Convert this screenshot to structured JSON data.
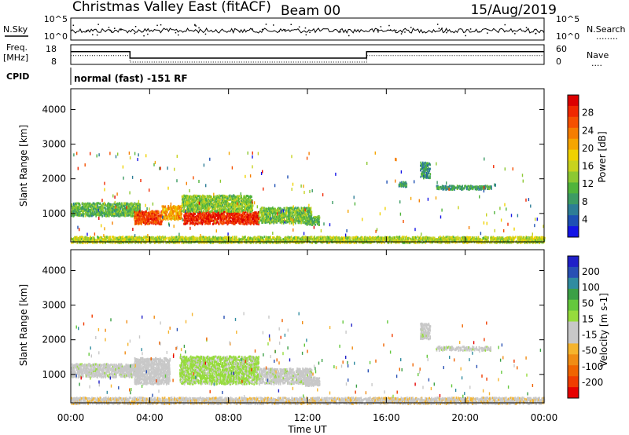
{
  "header": {
    "title": "Christmas Valley East (fitACF)",
    "beam": "Beam 00",
    "date": "15/Aug/2019"
  },
  "nsky_panel": {
    "left_label": "N.Sky",
    "left_ticks": [
      "10^5",
      "10^0"
    ],
    "right_ticks": [
      "10^5",
      "10^0"
    ],
    "right_label": "N.Search",
    "right_legend": "........"
  },
  "freq_panel": {
    "left_label_1": "Freq.",
    "left_label_2": "[MHz]",
    "left_ticks": [
      "18",
      "8"
    ],
    "right_ticks": [
      "60",
      "0"
    ],
    "right_label": "Nave",
    "right_legend": "....",
    "freq_steps": [
      {
        "start_hour": 0,
        "end_hour": 3.0,
        "value": 14.5
      },
      {
        "start_hour": 3.0,
        "end_hour": 15.0,
        "value": 11.2
      },
      {
        "start_hour": 15.0,
        "end_hour": 24.0,
        "value": 14.5
      }
    ]
  },
  "cpid_panel": {
    "label": "CPID",
    "text": "normal (fast) -151 RF"
  },
  "colors": {
    "power_scale": [
      "#1414e6",
      "#1e50b4",
      "#2d7d96",
      "#3c9b64",
      "#50b43c",
      "#8cc832",
      "#c8d21e",
      "#f0d200",
      "#f5a500",
      "#f57d00",
      "#f55000",
      "#f02800",
      "#dc0000"
    ],
    "velocity_scale": [
      "#2020c8",
      "#2850b4",
      "#308ca0",
      "#3ca046",
      "#64c83c",
      "#96dc3c",
      "#c8c8c8",
      "#c8c8c8",
      "#f5b42d",
      "#f08c14",
      "#f06400",
      "#f03c00",
      "#e60000"
    ]
  },
  "chart_data": [
    {
      "type": "heatmap",
      "name": "power",
      "x_unit": "hours UT",
      "xlim": [
        0,
        24
      ],
      "ylim": [
        180,
        4600
      ],
      "ylabel": "Slant Range [km]",
      "yticks": [
        "1000",
        "2000",
        "3000",
        "4000"
      ],
      "colorbar_label": "Power [dB]",
      "colorbar_ticks": [
        "4",
        "8",
        "12",
        "16",
        "20",
        "24",
        "28"
      ],
      "blobs": [
        {
          "x0": 0.0,
          "x1": 3.5,
          "y0": 950,
          "y1": 1330,
          "value": 10
        },
        {
          "x0": 3.2,
          "x1": 4.6,
          "y0": 720,
          "y1": 1100,
          "value": 26
        },
        {
          "x0": 4.6,
          "x1": 5.6,
          "y0": 850,
          "y1": 1250,
          "value": 20
        },
        {
          "x0": 5.7,
          "x1": 9.5,
          "y0": 720,
          "y1": 1080,
          "value": 28
        },
        {
          "x0": 5.6,
          "x1": 9.2,
          "y0": 1080,
          "y1": 1550,
          "value": 12
        },
        {
          "x0": 9.5,
          "x1": 12.2,
          "y0": 750,
          "y1": 1200,
          "value": 11
        },
        {
          "x0": 11.8,
          "x1": 12.6,
          "y0": 700,
          "y1": 950,
          "value": 10
        },
        {
          "x0": 0.0,
          "x1": 24.0,
          "y0": 180,
          "y1": 360,
          "value": 14
        },
        {
          "x0": 16.6,
          "x1": 17.0,
          "y0": 1800,
          "y1": 1950,
          "value": 8
        },
        {
          "x0": 17.7,
          "x1": 18.2,
          "y0": 2050,
          "y1": 2500,
          "value": 7
        },
        {
          "x0": 18.5,
          "x1": 21.3,
          "y0": 1720,
          "y1": 1830,
          "value": 8
        }
      ]
    },
    {
      "type": "heatmap",
      "name": "velocity",
      "x_unit": "hours UT",
      "xlim": [
        0,
        24
      ],
      "ylim": [
        180,
        4600
      ],
      "ylabel": "Slant Range [km]",
      "yticks": [
        "1000",
        "2000",
        "3000",
        "4000"
      ],
      "xlabel": "Time UT",
      "xticks": [
        "00:00",
        "04:00",
        "08:00",
        "12:00",
        "16:00",
        "20:00",
        "00:00"
      ],
      "colorbar_label": "Velocity [m s-1]",
      "colorbar_ticks": [
        "200",
        "100",
        "50",
        "15",
        "-15",
        "-50",
        "-100",
        "-200"
      ],
      "blobs": [
        {
          "x0": 0.0,
          "x1": 3.5,
          "y0": 950,
          "y1": 1330,
          "value": 0
        },
        {
          "x0": 3.2,
          "x1": 5.0,
          "y0": 750,
          "y1": 1500,
          "value": -30
        },
        {
          "x0": 5.5,
          "x1": 9.5,
          "y0": 750,
          "y1": 1550,
          "value": 25
        },
        {
          "x0": 9.5,
          "x1": 12.2,
          "y0": 750,
          "y1": 1200,
          "value": 0
        },
        {
          "x0": 11.8,
          "x1": 12.6,
          "y0": 700,
          "y1": 950,
          "value": -30
        },
        {
          "x0": 0.0,
          "x1": 24.0,
          "y0": 180,
          "y1": 360,
          "value": -40
        },
        {
          "x0": 17.7,
          "x1": 18.2,
          "y0": 2050,
          "y1": 2500,
          "value": 0
        },
        {
          "x0": 18.5,
          "x1": 21.3,
          "y0": 1720,
          "y1": 1830,
          "value": 0
        }
      ]
    }
  ],
  "xaxis": {
    "label": "Time UT",
    "ticks": [
      "00:00",
      "04:00",
      "08:00",
      "12:00",
      "16:00",
      "20:00",
      "00:00"
    ]
  }
}
